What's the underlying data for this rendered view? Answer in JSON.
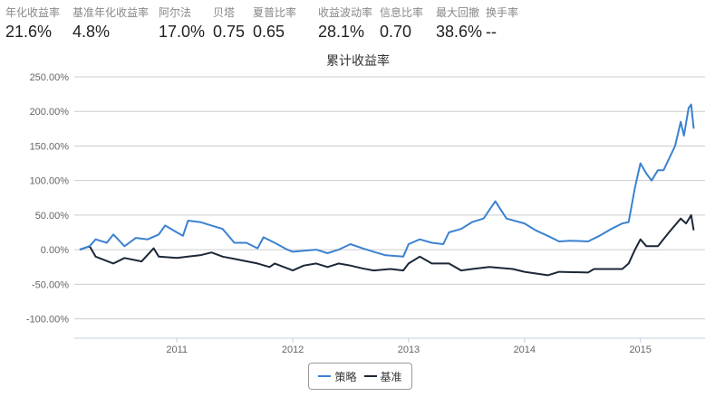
{
  "stats": [
    {
      "label": "年化收益率",
      "value": "21.6%"
    },
    {
      "label": "基准年化收益率",
      "value": "4.8%"
    },
    {
      "label": "阿尔法",
      "value": "17.0%"
    },
    {
      "label": "贝塔",
      "value": "0.75"
    },
    {
      "label": "夏普比率",
      "value": "0.65"
    },
    {
      "label": "收益波动率",
      "value": "28.1%"
    },
    {
      "label": "信息比率",
      "value": "0.70"
    },
    {
      "label": "最大回撤",
      "value": "38.6%"
    },
    {
      "label": "换手率",
      "value": "--"
    }
  ],
  "chart_data": {
    "type": "line",
    "title": "累计收益率",
    "xlabel": "",
    "ylabel": "",
    "ylim": [
      -128,
      250
    ],
    "xlim": [
      "2010-03-01",
      "2015-06-25"
    ],
    "y_ticks": [
      "250.00%",
      "200.00%",
      "150.00%",
      "100.00%",
      "50.00%",
      "0.00%",
      "-50.00%",
      "-100.00%"
    ],
    "y_tick_values": [
      250,
      200,
      150,
      100,
      50,
      0,
      -50,
      -100
    ],
    "x_ticks": [
      "2011",
      "2012",
      "2013",
      "2014",
      "2015"
    ],
    "grid": true,
    "legend": "bottom",
    "series": [
      {
        "name": "策略",
        "color": "#3b82d0",
        "points": [
          [
            "2010-03-01",
            0
          ],
          [
            "2010-04-01",
            5
          ],
          [
            "2010-04-20",
            15
          ],
          [
            "2010-05-25",
            10
          ],
          [
            "2010-06-15",
            22
          ],
          [
            "2010-07-20",
            5
          ],
          [
            "2010-08-25",
            17
          ],
          [
            "2010-10-01",
            15
          ],
          [
            "2010-11-05",
            22
          ],
          [
            "2010-11-25",
            35
          ],
          [
            "2011-01-01",
            25
          ],
          [
            "2011-01-20",
            20
          ],
          [
            "2011-02-05",
            42
          ],
          [
            "2011-03-15",
            40
          ],
          [
            "2011-04-20",
            35
          ],
          [
            "2011-05-25",
            30
          ],
          [
            "2011-07-01",
            10
          ],
          [
            "2011-08-08",
            10
          ],
          [
            "2011-09-12",
            2
          ],
          [
            "2011-10-01",
            18
          ],
          [
            "2011-11-05",
            10
          ],
          [
            "2011-12-15",
            0
          ],
          [
            "2012-01-01",
            -3
          ],
          [
            "2012-03-15",
            0
          ],
          [
            "2012-04-20",
            -5
          ],
          [
            "2012-05-25",
            0
          ],
          [
            "2012-07-01",
            8
          ],
          [
            "2012-08-08",
            2
          ],
          [
            "2012-09-12",
            -3
          ],
          [
            "2012-10-20",
            -8
          ],
          [
            "2012-12-15",
            -10
          ],
          [
            "2013-01-01",
            8
          ],
          [
            "2013-02-05",
            15
          ],
          [
            "2013-03-15",
            10
          ],
          [
            "2013-04-20",
            8
          ],
          [
            "2013-05-08",
            25
          ],
          [
            "2013-06-15",
            30
          ],
          [
            "2013-07-20",
            40
          ],
          [
            "2013-08-25",
            45
          ],
          [
            "2013-10-01",
            70
          ],
          [
            "2013-11-05",
            45
          ],
          [
            "2014-01-01",
            38
          ],
          [
            "2014-02-05",
            28
          ],
          [
            "2014-03-15",
            20
          ],
          [
            "2014-04-20",
            12
          ],
          [
            "2014-05-25",
            13
          ],
          [
            "2014-07-20",
            12
          ],
          [
            "2014-08-25",
            20
          ],
          [
            "2014-10-01",
            30
          ],
          [
            "2014-11-05",
            38
          ],
          [
            "2014-11-25",
            40
          ],
          [
            "2014-12-15",
            90
          ],
          [
            "2015-01-01",
            125
          ],
          [
            "2015-01-20",
            110
          ],
          [
            "2015-02-05",
            100
          ],
          [
            "2015-02-25",
            115
          ],
          [
            "2015-03-15",
            115
          ],
          [
            "2015-04-20",
            150
          ],
          [
            "2015-05-08",
            185
          ],
          [
            "2015-05-18",
            165
          ],
          [
            "2015-06-02",
            205
          ],
          [
            "2015-06-10",
            210
          ],
          [
            "2015-06-18",
            175
          ]
        ]
      },
      {
        "name": "基准",
        "color": "#1b2838",
        "points": [
          [
            "2010-03-01",
            0
          ],
          [
            "2010-04-01",
            5
          ],
          [
            "2010-04-20",
            -10
          ],
          [
            "2010-06-15",
            -20
          ],
          [
            "2010-07-20",
            -12
          ],
          [
            "2010-09-12",
            -17
          ],
          [
            "2010-10-20",
            2
          ],
          [
            "2010-11-05",
            -10
          ],
          [
            "2011-01-01",
            -12
          ],
          [
            "2011-02-05",
            -10
          ],
          [
            "2011-03-15",
            -8
          ],
          [
            "2011-04-20",
            -4
          ],
          [
            "2011-05-25",
            -10
          ],
          [
            "2011-07-20",
            -15
          ],
          [
            "2011-09-12",
            -20
          ],
          [
            "2011-10-20",
            -25
          ],
          [
            "2011-11-05",
            -20
          ],
          [
            "2012-01-01",
            -30
          ],
          [
            "2012-02-05",
            -23
          ],
          [
            "2012-03-15",
            -20
          ],
          [
            "2012-04-20",
            -25
          ],
          [
            "2012-05-25",
            -20
          ],
          [
            "2012-07-01",
            -23
          ],
          [
            "2012-08-08",
            -27
          ],
          [
            "2012-09-12",
            -30
          ],
          [
            "2012-11-05",
            -28
          ],
          [
            "2012-12-15",
            -30
          ],
          [
            "2013-01-01",
            -20
          ],
          [
            "2013-02-05",
            -10
          ],
          [
            "2013-03-15",
            -20
          ],
          [
            "2013-05-08",
            -20
          ],
          [
            "2013-06-15",
            -30
          ],
          [
            "2013-07-20",
            -28
          ],
          [
            "2013-09-12",
            -25
          ],
          [
            "2013-11-25",
            -28
          ],
          [
            "2014-01-01",
            -32
          ],
          [
            "2014-03-15",
            -37
          ],
          [
            "2014-04-20",
            -32
          ],
          [
            "2014-07-20",
            -33
          ],
          [
            "2014-08-08",
            -28
          ],
          [
            "2014-11-05",
            -28
          ],
          [
            "2014-11-25",
            -20
          ],
          [
            "2014-12-15",
            0
          ],
          [
            "2015-01-01",
            15
          ],
          [
            "2015-01-20",
            5
          ],
          [
            "2015-02-25",
            5
          ],
          [
            "2015-04-01",
            25
          ],
          [
            "2015-05-08",
            45
          ],
          [
            "2015-05-25",
            38
          ],
          [
            "2015-06-10",
            50
          ],
          [
            "2015-06-18",
            28
          ]
        ]
      }
    ]
  }
}
